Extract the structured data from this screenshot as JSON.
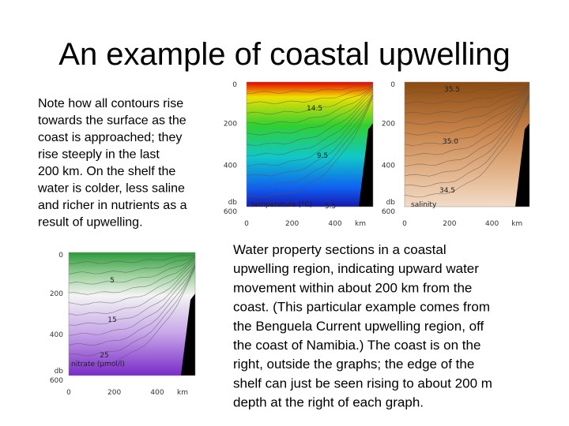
{
  "title": "An example of coastal upwelling",
  "left_text": [
    "Note how all contours rise",
    "towards the surface as the",
    "coast is approached; they",
    "rise steeply in the last",
    "200 km. On the shelf the",
    "water is colder, less saline",
    "and richer in nutrients as a",
    "result of upwelling."
  ],
  "right_text": [
    "Water property sections in a coastal",
    "upwelling region, indicating upward water",
    "movement within about 200 km from the",
    "coast. (This particular example comes from",
    "the Benguela Current upwelling region, off",
    "the coast of Namibia.) The coast is on the",
    "right, outside the graphs; the edge of the",
    "shelf can just be seen rising to about 200 m",
    "depth at the right of each graph."
  ],
  "plots": [
    {
      "name": "temperature (°C)",
      "y_ticks": [
        "0",
        "200",
        "400",
        "db",
        "600"
      ],
      "x_ticks": [
        "0",
        "200",
        "400",
        "km"
      ],
      "contour_labels": [
        "14.5",
        "9.5",
        "5.5"
      ]
    },
    {
      "name": "salinity",
      "y_ticks": [
        "0",
        "200",
        "400",
        "db",
        "600"
      ],
      "x_ticks": [
        "0",
        "200",
        "400",
        "km"
      ],
      "contour_labels": [
        "35.5",
        "35.0",
        "34.5"
      ]
    },
    {
      "name": "nitrate (µmol/l)",
      "y_ticks": [
        "0",
        "200",
        "400",
        "db",
        "600"
      ],
      "x_ticks": [
        "0",
        "200",
        "400",
        "km"
      ],
      "contour_labels": [
        "5",
        "15",
        "25"
      ]
    }
  ]
}
